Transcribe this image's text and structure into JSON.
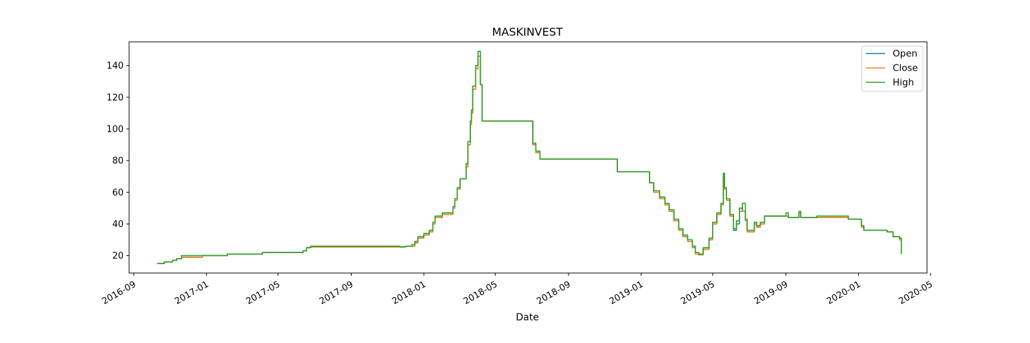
{
  "chart_data": {
    "type": "line",
    "title": "MASKINVEST",
    "xlabel": "Date",
    "ylabel": "",
    "xlim": [
      "2016-08-24",
      "2020-04-25"
    ],
    "ylim": [
      9,
      155
    ],
    "grid": false,
    "legend_position": "top-right",
    "x_ticks": [
      "2016-09",
      "2017-01",
      "2017-05",
      "2017-09",
      "2018-01",
      "2018-05",
      "2018-09",
      "2019-01",
      "2019-05",
      "2019-09",
      "2020-01",
      "2020-05"
    ],
    "y_ticks": [
      20,
      40,
      60,
      80,
      100,
      120,
      140
    ],
    "colors": {
      "Open": "#1f77b4",
      "Close": "#ff7f0e",
      "High": "#2ca02c"
    },
    "series": [
      {
        "name": "Open",
        "x": [
          "2016-10-10",
          "2016-10-22",
          "2016-11-05",
          "2016-11-12",
          "2016-11-20",
          "2016-12-25",
          "2017-02-05",
          "2017-04-05",
          "2017-06-12",
          "2017-06-18",
          "2017-06-25",
          "2017-11-22",
          "2017-12-01",
          "2017-12-12",
          "2017-12-17",
          "2017-12-22",
          "2018-01-01",
          "2018-01-10",
          "2018-01-16",
          "2018-01-20",
          "2018-02-01",
          "2018-02-19",
          "2018-02-22",
          "2018-02-26",
          "2018-03-03",
          "2018-03-09",
          "2018-03-13",
          "2018-03-16",
          "2018-03-20",
          "2018-03-22",
          "2018-03-24",
          "2018-03-29",
          "2018-04-02",
          "2018-04-06",
          "2018-04-09",
          "2018-07-01",
          "2018-07-03",
          "2018-07-08",
          "2018-07-15",
          "2018-07-25",
          "2018-07-27",
          "2018-11-20",
          "2018-11-22",
          "2019-01-05",
          "2019-01-15",
          "2019-01-22",
          "2019-02-01",
          "2019-02-10",
          "2019-02-17",
          "2019-02-25",
          "2019-03-05",
          "2019-03-12",
          "2019-03-20",
          "2019-03-28",
          "2019-04-02",
          "2019-04-08",
          "2019-04-15",
          "2019-04-25",
          "2019-05-01",
          "2019-05-08",
          "2019-05-15",
          "2019-05-19",
          "2019-05-21",
          "2019-05-24",
          "2019-05-30",
          "2019-06-05",
          "2019-06-10",
          "2019-06-15",
          "2019-06-20",
          "2019-06-25",
          "2019-06-28",
          "2019-07-10",
          "2019-07-14",
          "2019-07-20",
          "2019-07-27",
          "2019-08-03",
          "2019-09-01",
          "2019-09-05",
          "2019-09-20",
          "2019-09-23",
          "2019-09-26",
          "2019-10-20",
          "2019-10-23",
          "2019-12-01",
          "2019-12-15",
          "2019-12-20",
          "2020-01-01",
          "2020-01-06",
          "2020-01-10",
          "2020-02-14",
          "2020-02-18",
          "2020-02-28",
          "2020-03-10",
          "2020-03-13"
        ],
        "values": [
          15,
          16,
          17,
          18,
          19,
          20,
          21,
          22,
          23,
          25,
          25.5,
          25.5,
          26,
          26,
          28,
          31,
          33,
          35,
          40,
          44,
          46,
          50,
          55,
          62,
          68.5,
          68.5,
          76,
          90,
          103,
          110,
          125,
          138,
          146,
          128,
          105,
          105,
          90,
          85,
          81,
          81,
          81,
          81,
          73,
          73,
          66,
          60,
          56,
          52,
          48,
          42,
          36,
          32,
          29,
          25,
          21,
          20.5,
          24,
          30,
          40,
          46,
          52,
          70,
          62,
          55,
          45,
          36,
          40,
          50,
          48,
          42,
          35,
          40,
          38,
          40,
          45,
          45,
          45,
          44,
          44,
          47,
          44,
          44,
          44,
          44,
          43,
          43,
          43,
          38,
          36,
          36,
          35,
          32,
          30,
          21
        ]
      },
      {
        "name": "Close",
        "x": [
          "2016-10-10",
          "2016-10-22",
          "2016-11-05",
          "2016-11-12",
          "2016-11-20",
          "2016-12-25",
          "2017-02-05",
          "2017-04-05",
          "2017-06-12",
          "2017-06-18",
          "2017-06-25",
          "2017-11-22",
          "2017-12-01",
          "2017-12-12",
          "2017-12-17",
          "2017-12-22",
          "2018-01-01",
          "2018-01-10",
          "2018-01-16",
          "2018-01-20",
          "2018-02-01",
          "2018-02-19",
          "2018-02-22",
          "2018-02-26",
          "2018-03-03",
          "2018-03-09",
          "2018-03-13",
          "2018-03-16",
          "2018-03-20",
          "2018-03-22",
          "2018-03-24",
          "2018-03-29",
          "2018-04-02",
          "2018-04-06",
          "2018-04-09",
          "2018-07-01",
          "2018-07-03",
          "2018-07-08",
          "2018-07-15",
          "2018-07-25",
          "2018-07-27",
          "2018-11-20",
          "2018-11-22",
          "2019-01-05",
          "2019-01-15",
          "2019-01-22",
          "2019-02-01",
          "2019-02-10",
          "2019-02-17",
          "2019-02-25",
          "2019-03-05",
          "2019-03-12",
          "2019-03-20",
          "2019-03-28",
          "2019-04-02",
          "2019-04-08",
          "2019-04-15",
          "2019-04-25",
          "2019-05-01",
          "2019-05-08",
          "2019-05-15",
          "2019-05-19",
          "2019-05-21",
          "2019-05-24",
          "2019-05-30",
          "2019-06-05",
          "2019-06-10",
          "2019-06-15",
          "2019-06-20",
          "2019-06-25",
          "2019-06-28",
          "2019-07-10",
          "2019-07-14",
          "2019-07-20",
          "2019-07-27",
          "2019-08-03",
          "2019-09-01",
          "2019-09-05",
          "2019-09-20",
          "2019-09-23",
          "2019-09-26",
          "2019-10-20",
          "2019-10-23",
          "2019-12-01",
          "2019-12-15",
          "2019-12-20",
          "2020-01-01",
          "2020-01-06",
          "2020-01-10",
          "2020-02-14",
          "2020-02-18",
          "2020-02-28",
          "2020-03-10",
          "2020-03-13"
        ],
        "values": [
          15,
          16,
          17,
          18,
          19,
          20,
          21,
          22,
          23,
          25,
          25.5,
          25.5,
          26,
          26,
          28,
          31,
          33,
          35,
          40,
          44,
          46,
          50,
          55,
          62,
          68.5,
          68.5,
          76,
          90,
          103,
          110,
          125,
          138,
          146,
          128,
          105,
          105,
          90,
          85,
          81,
          81,
          81,
          81,
          73,
          73,
          66,
          60,
          56,
          52,
          48,
          42,
          36,
          32,
          29,
          25,
          21,
          20.5,
          24,
          30,
          40,
          46,
          52,
          70,
          62,
          55,
          45,
          37,
          42,
          48,
          48,
          42,
          35,
          40,
          38,
          40,
          45,
          45,
          45,
          44,
          44,
          47,
          44,
          44,
          44,
          44,
          43,
          43,
          43,
          38,
          36,
          36,
          35,
          32,
          30,
          21
        ]
      },
      {
        "name": "High",
        "x": [
          "2016-10-10",
          "2016-10-22",
          "2016-11-05",
          "2016-11-12",
          "2016-11-20",
          "2016-12-25",
          "2017-02-05",
          "2017-04-05",
          "2017-06-12",
          "2017-06-18",
          "2017-06-25",
          "2017-11-22",
          "2017-12-01",
          "2017-12-12",
          "2017-12-17",
          "2017-12-22",
          "2018-01-01",
          "2018-01-10",
          "2018-01-16",
          "2018-01-20",
          "2018-02-01",
          "2018-02-19",
          "2018-02-22",
          "2018-02-26",
          "2018-03-03",
          "2018-03-09",
          "2018-03-13",
          "2018-03-16",
          "2018-03-20",
          "2018-03-22",
          "2018-03-24",
          "2018-03-29",
          "2018-04-02",
          "2018-04-06",
          "2018-04-09",
          "2018-07-01",
          "2018-07-03",
          "2018-07-08",
          "2018-07-15",
          "2018-07-25",
          "2018-07-27",
          "2018-11-20",
          "2018-11-22",
          "2019-01-05",
          "2019-01-15",
          "2019-01-22",
          "2019-02-01",
          "2019-02-10",
          "2019-02-17",
          "2019-02-25",
          "2019-03-05",
          "2019-03-12",
          "2019-03-20",
          "2019-03-28",
          "2019-04-02",
          "2019-04-08",
          "2019-04-15",
          "2019-04-25",
          "2019-05-01",
          "2019-05-08",
          "2019-05-15",
          "2019-05-19",
          "2019-05-21",
          "2019-05-24",
          "2019-05-30",
          "2019-06-05",
          "2019-06-10",
          "2019-06-15",
          "2019-06-20",
          "2019-06-25",
          "2019-06-28",
          "2019-07-10",
          "2019-07-14",
          "2019-07-20",
          "2019-07-27",
          "2019-08-03",
          "2019-09-01",
          "2019-09-05",
          "2019-09-20",
          "2019-09-23",
          "2019-09-26",
          "2019-10-20",
          "2019-10-23",
          "2019-12-01",
          "2019-12-15",
          "2019-12-20",
          "2020-01-01",
          "2020-01-06",
          "2020-01-10",
          "2020-02-14",
          "2020-02-18",
          "2020-02-28",
          "2020-03-10",
          "2020-03-13"
        ],
        "values": [
          15,
          16,
          17,
          18,
          20,
          20,
          21,
          22,
          23,
          25,
          26,
          25.5,
          26,
          27,
          29,
          32,
          34,
          36,
          41,
          45,
          47,
          51,
          56,
          63,
          68.5,
          68.5,
          78,
          92,
          105,
          112,
          127,
          140,
          149,
          128,
          105,
          105,
          91,
          86,
          81,
          81,
          81,
          81,
          73,
          73,
          66,
          61,
          57,
          53,
          49,
          43,
          37,
          33,
          30,
          26,
          22,
          21,
          25,
          31,
          41,
          47,
          53,
          72,
          63,
          56,
          46,
          37,
          42,
          50,
          53,
          43,
          36,
          41,
          39,
          41,
          45,
          45,
          47,
          44,
          44,
          48,
          44,
          44,
          45,
          45,
          43,
          43,
          43,
          39,
          36,
          36,
          35,
          32,
          31,
          21
        ]
      }
    ]
  }
}
